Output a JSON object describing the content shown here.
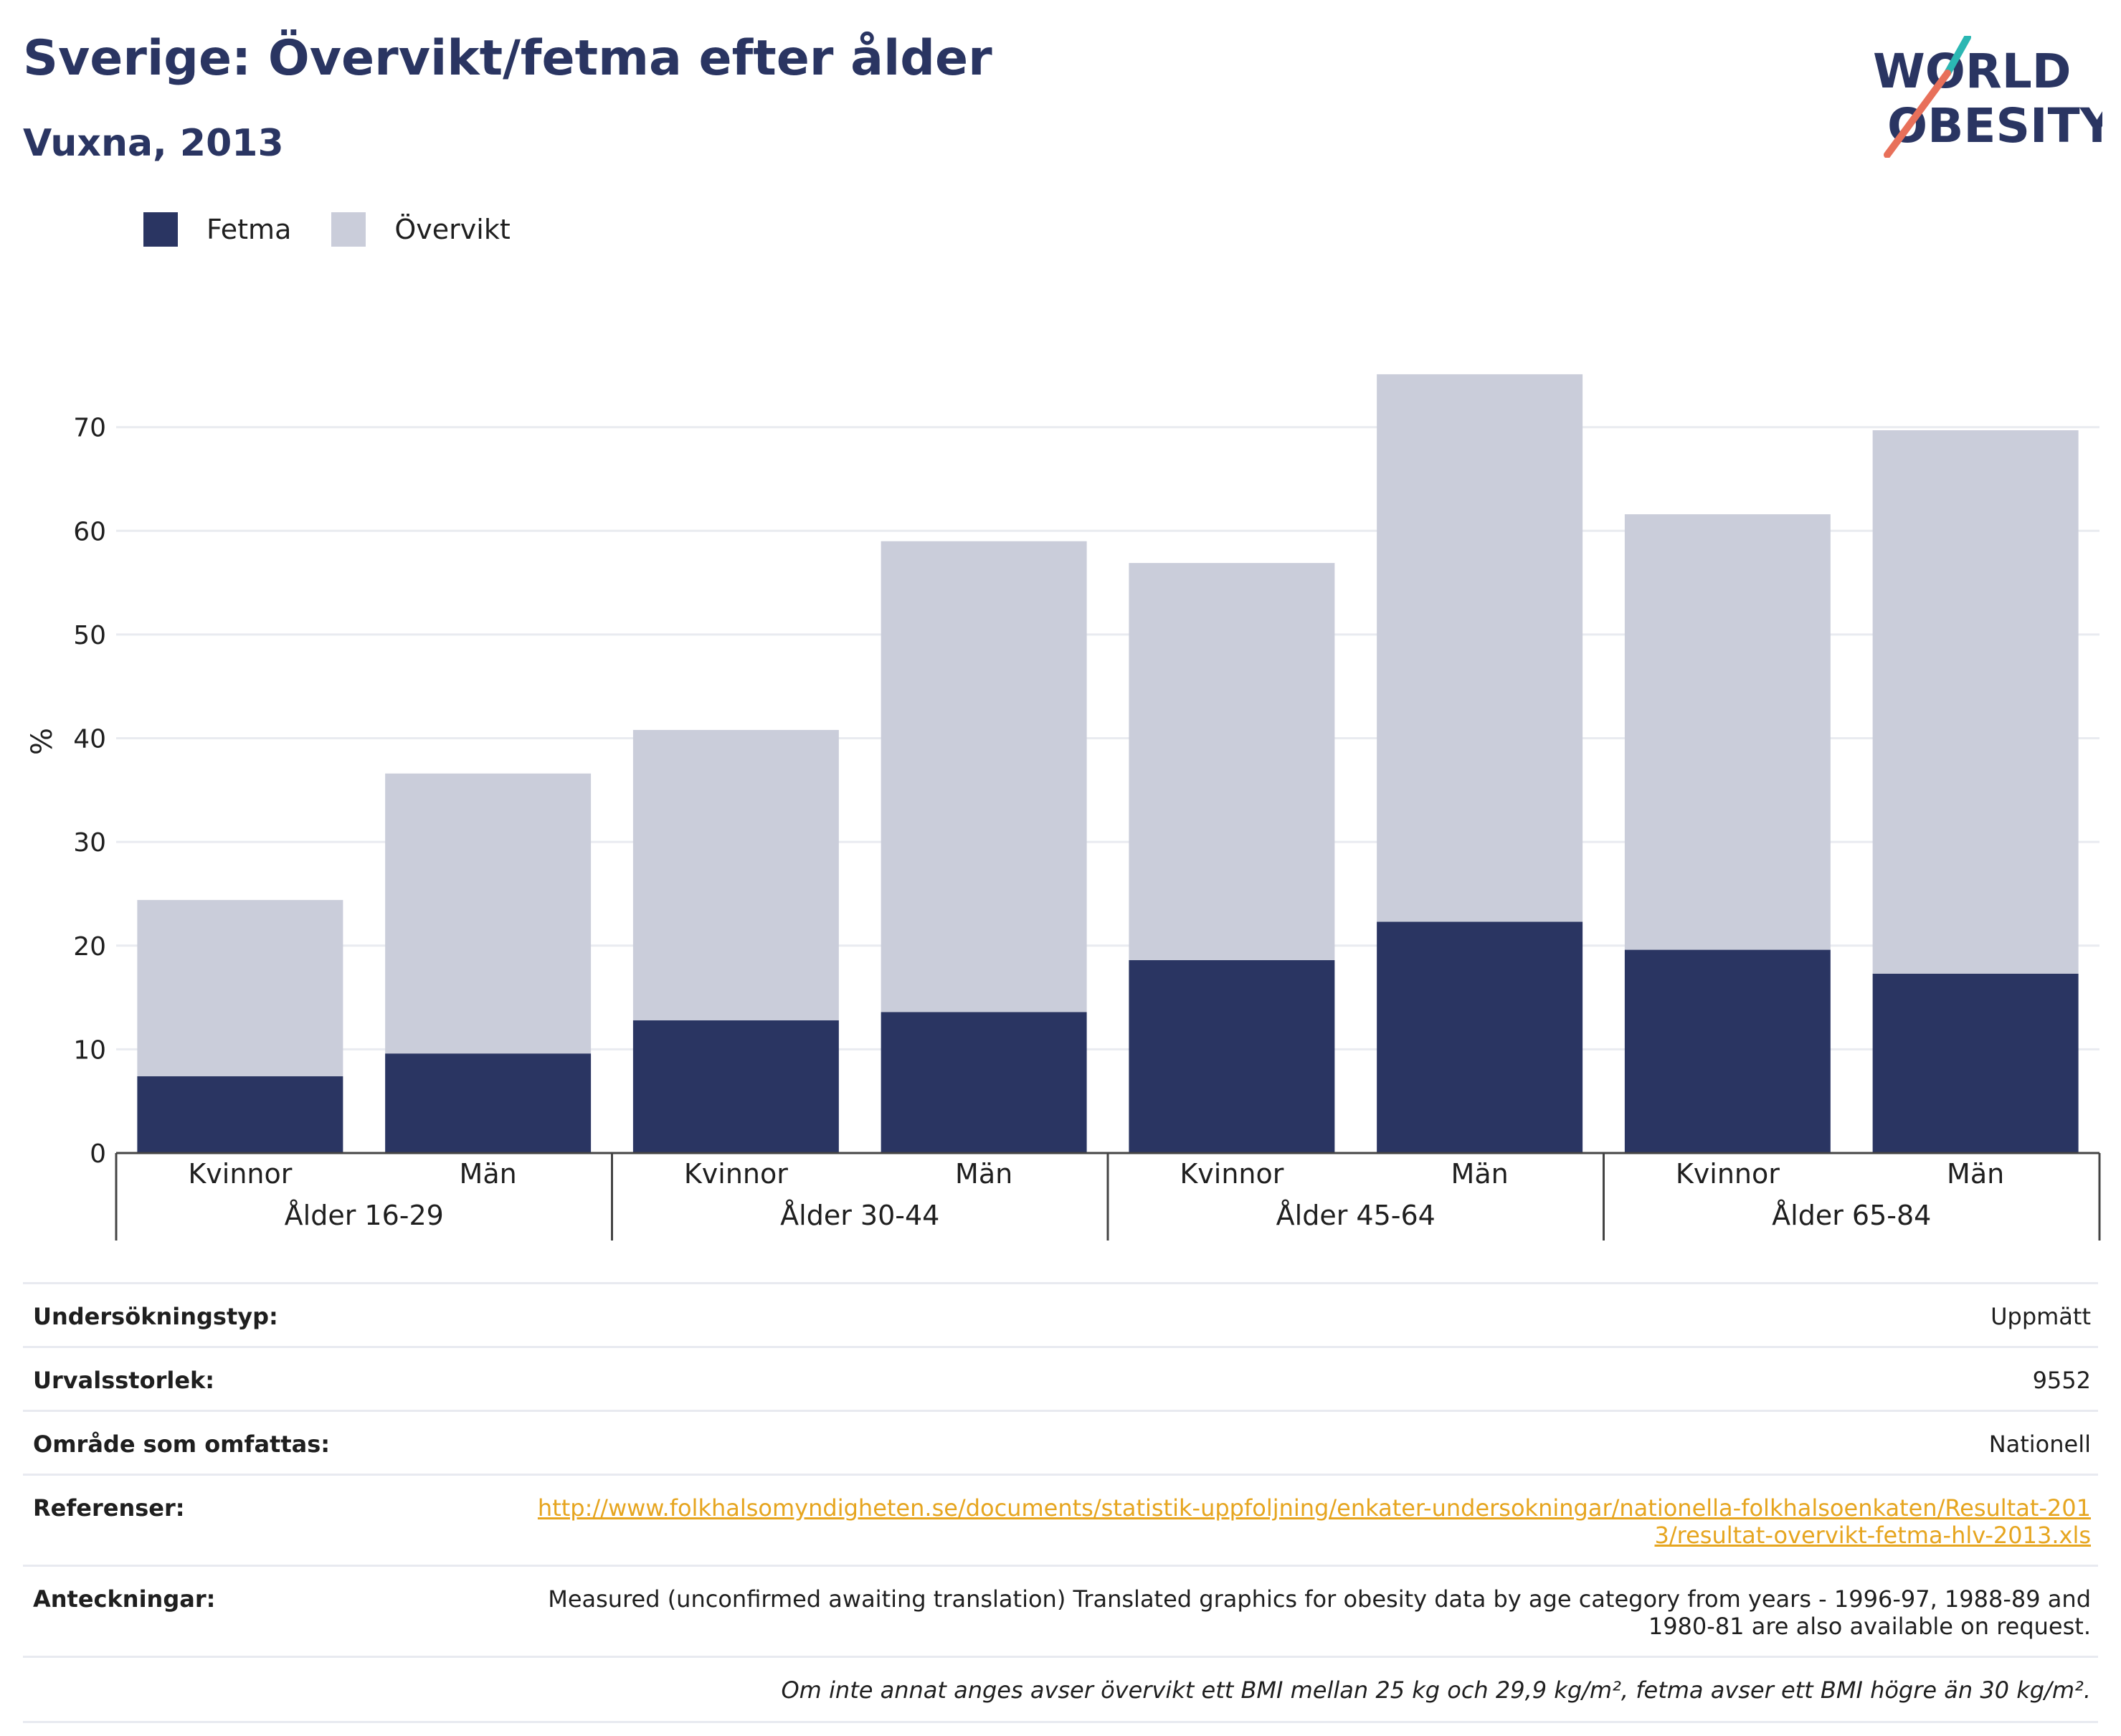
{
  "header": {
    "title": "Sverige: Övervikt/fetma efter ålder",
    "subtitle": "Vuxna, 2013",
    "logo_line1": "WORLD",
    "logo_line2": "OBESITY"
  },
  "legend": {
    "items": [
      {
        "label": "Fetma",
        "color": "#2a3562"
      },
      {
        "label": "Övervikt",
        "color": "#cacdda"
      }
    ]
  },
  "chart_data": {
    "type": "bar",
    "stacked": true,
    "ylabel": "%",
    "ylim": [
      0,
      78
    ],
    "yticks": [
      0,
      10,
      20,
      30,
      40,
      50,
      60,
      70
    ],
    "grid": true,
    "legend_position": "top-left",
    "categories": [
      "Kvinnor",
      "Män",
      "Kvinnor",
      "Män",
      "Kvinnor",
      "Män",
      "Kvinnor",
      "Män"
    ],
    "groups": [
      "Ålder 16-29",
      "Ålder 30-44",
      "Ålder 45-64",
      "Ålder 65-84"
    ],
    "series": [
      {
        "name": "Fetma",
        "color": "#2a3562",
        "values": [
          7.4,
          9.6,
          12.8,
          13.6,
          18.6,
          22.3,
          19.6,
          17.3
        ]
      },
      {
        "name": "Övervikt",
        "color": "#cacdda",
        "values": [
          17.0,
          27.0,
          28.0,
          45.4,
          38.3,
          52.8,
          42.0,
          52.4
        ]
      }
    ]
  },
  "info": {
    "rows": [
      {
        "label": "Undersökningstyp:",
        "value": "Uppmätt"
      },
      {
        "label": "Urvalsstorlek:",
        "value": "9552"
      },
      {
        "label": "Område som omfattas:",
        "value": "Nationell"
      },
      {
        "label": "Referenser:",
        "value": "http://www.folkhalsomyndigheten.se/documents/statistik-uppfoljning/enkater-undersokningar/nationella-folkhalsoenkaten/Resultat-2013/resultat-overvikt-fetma-hlv-2013.xls"
      },
      {
        "label": "Anteckningar:",
        "value": "Measured (unconfirmed awaiting translation) Translated graphics for obesity data by age category from years - 1996-97, 1988-89 and 1980-81 are also available on request."
      }
    ],
    "footnote": "Om inte annat anges avser övervikt ett BMI mellan 25 kg och 29,9 kg/m², fetma avser ett BMI högre än 30 kg/m²."
  }
}
